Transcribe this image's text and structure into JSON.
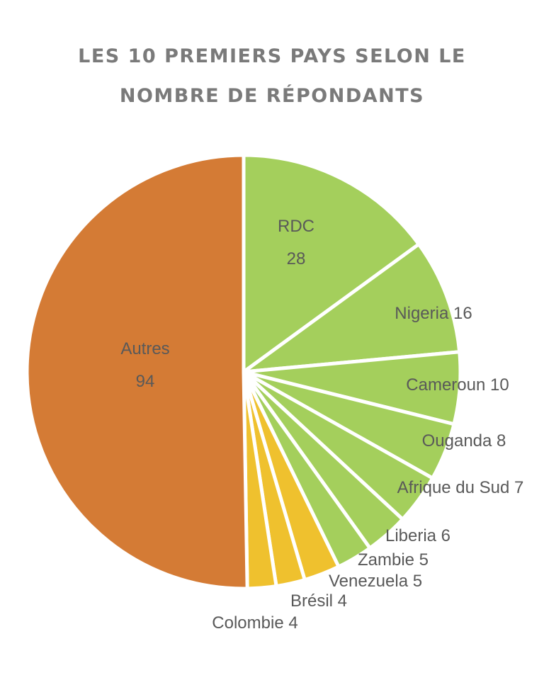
{
  "title_lines": [
    "LES 10 PREMIERS PAYS SELON LE",
    "NOMBRE DE RÉPONDANTS"
  ],
  "colors": {
    "green": "#a4cf5c",
    "orange": "#d47b35",
    "yellow": "#efc12e",
    "label": "#595959",
    "title": "#7a7a7a"
  },
  "chart_data": {
    "type": "pie",
    "title": "LES 10 PREMIERS PAYS SELON LE NOMBRE DE RÉPONDANTS",
    "slices": [
      {
        "label": "RDC",
        "value": 28,
        "color": "#a4cf5c"
      },
      {
        "label": "Nigeria",
        "value": 16,
        "color": "#a4cf5c"
      },
      {
        "label": "Cameroun",
        "value": 10,
        "color": "#a4cf5c"
      },
      {
        "label": "Ouganda",
        "value": 8,
        "color": "#a4cf5c"
      },
      {
        "label": "Afrique du Sud",
        "value": 7,
        "color": "#a4cf5c"
      },
      {
        "label": "Liberia",
        "value": 6,
        "color": "#a4cf5c"
      },
      {
        "label": "Zambie",
        "value": 5,
        "color": "#a4cf5c"
      },
      {
        "label": "Venezuela",
        "value": 5,
        "color": "#efc12e"
      },
      {
        "label": "Brésil",
        "value": 4,
        "color": "#efc12e"
      },
      {
        "label": "Colombie",
        "value": 4,
        "color": "#efc12e"
      },
      {
        "label": "Autres",
        "value": 94,
        "color": "#d47b35"
      }
    ],
    "start_angle": "12 o'clock",
    "direction": "clockwise",
    "legend": "none"
  }
}
